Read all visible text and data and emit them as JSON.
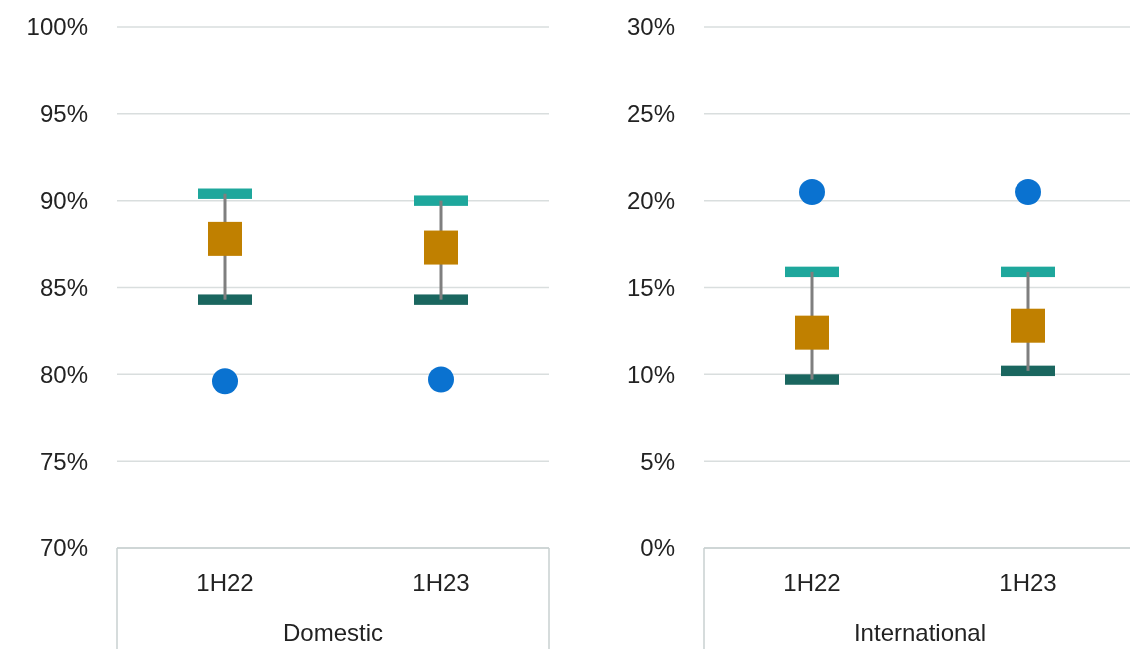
{
  "chart_data": [
    {
      "type": "scatter",
      "categories": [
        "1H22",
        "1H23"
      ],
      "xlabel": "Domestic",
      "ylim": [
        70,
        100
      ],
      "yticks": [
        {
          "value": 70,
          "label": "70%"
        },
        {
          "value": 75,
          "label": "75%"
        },
        {
          "value": 80,
          "label": "80%"
        },
        {
          "value": 85,
          "label": "85%"
        },
        {
          "value": 90,
          "label": "90%"
        },
        {
          "value": 95,
          "label": "95%"
        },
        {
          "value": 100,
          "label": "100%"
        }
      ],
      "grid": "y",
      "series": [
        {
          "type": "bar",
          "color": "#1ea79c",
          "base": [
            90.1,
            89.7
          ],
          "values": [
            0.6,
            0.6
          ]
        },
        {
          "type": "bar",
          "color": "#1a665f",
          "base": [
            84.0,
            84.0
          ],
          "values": [
            0.6,
            0.6
          ]
        },
        {
          "color": "#c08000",
          "marker": "square",
          "values": [
            87.8,
            87.3
          ],
          "errors": [
            [
              84.3,
              90.4
            ],
            [
              84.3,
              90.0
            ]
          ]
        },
        {
          "color": "#0a72d0",
          "marker": "circle",
          "values": [
            79.6,
            79.7
          ]
        }
      ]
    },
    {
      "type": "scatter",
      "categories": [
        "1H22",
        "1H23"
      ],
      "xlabel": "International",
      "ylim": [
        0,
        30
      ],
      "yticks": [
        {
          "value": 0,
          "label": "0%"
        },
        {
          "value": 5,
          "label": "5%"
        },
        {
          "value": 10,
          "label": "10%"
        },
        {
          "value": 15,
          "label": "15%"
        },
        {
          "value": 20,
          "label": "20%"
        },
        {
          "value": 25,
          "label": "25%"
        },
        {
          "value": 30,
          "label": "30%"
        }
      ],
      "grid": "y",
      "series": [
        {
          "type": "bar",
          "color": "#1ea79c",
          "base": [
            15.6,
            15.6
          ],
          "values": [
            0.6,
            0.6
          ]
        },
        {
          "type": "bar",
          "color": "#1a665f",
          "base": [
            9.4,
            9.9
          ],
          "values": [
            0.6,
            0.6
          ]
        },
        {
          "color": "#c08000",
          "marker": "square",
          "values": [
            12.4,
            12.8
          ],
          "errors": [
            [
              9.7,
              15.9
            ],
            [
              10.2,
              15.9
            ]
          ]
        },
        {
          "color": "#0a72d0",
          "marker": "circle",
          "values": [
            20.5,
            20.5
          ]
        }
      ]
    }
  ]
}
